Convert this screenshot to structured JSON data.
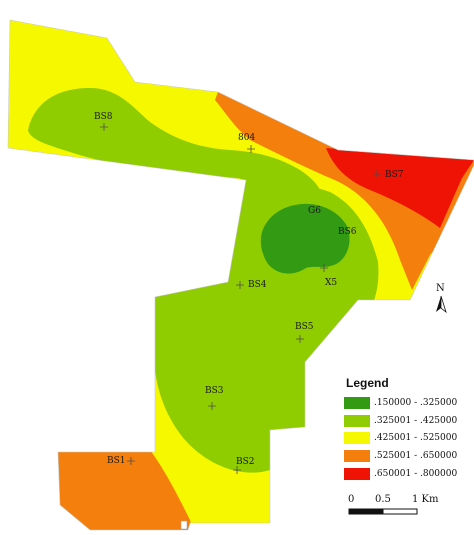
{
  "map": {
    "colors": {
      "class1": "#339a14",
      "class2": "#8fcd00",
      "class3": "#f6f800",
      "class4": "#f47f0d",
      "class5": "#ee1305"
    },
    "sites": [
      {
        "id": "bs8",
        "label": "BS8"
      },
      {
        "id": "804",
        "label": "804"
      },
      {
        "id": "bs7",
        "label": "BS7"
      },
      {
        "id": "g6",
        "label": "G6"
      },
      {
        "id": "bs6",
        "label": "BS6"
      },
      {
        "id": "x5",
        "label": "X5"
      },
      {
        "id": "bs4",
        "label": "BS4"
      },
      {
        "id": "bs5",
        "label": "BS5"
      },
      {
        "id": "bs3",
        "label": "BS3"
      },
      {
        "id": "bs1",
        "label": "BS1"
      },
      {
        "id": "bs2",
        "label": "BS2"
      }
    ]
  },
  "north_arrow": {
    "label": "N"
  },
  "legend": {
    "title": "Legend",
    "items": [
      {
        "label": ".150000 - .325000",
        "color": "#339a14"
      },
      {
        "label": ".325001 - .425000",
        "color": "#8fcd00"
      },
      {
        "label": ".425001 - .525000",
        "color": "#f6f800"
      },
      {
        "label": ".525001 - .650000",
        "color": "#f47f0d"
      },
      {
        "label": ".650001 - .800000",
        "color": "#ee1305"
      }
    ]
  },
  "scale_bar": {
    "labels": [
      "0",
      "0.5",
      "1 Km"
    ]
  }
}
